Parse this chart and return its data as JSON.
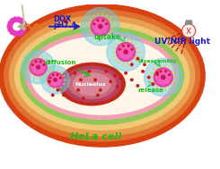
{
  "bg_color": "#ffffff",
  "cell_outer_color": "#d94010",
  "cell_mid1_color": "#e07030",
  "cell_mid2_color": "#e8a050",
  "cell_mid3_color": "#f0c878",
  "cell_green_ring": "#90c855",
  "cell_pink_ring": "#f0a0b0",
  "cytoplasm_color": "#fdf5e8",
  "nucleus_outer": "#c02818",
  "nucleus_mid": "#b84060",
  "nucleus_inner1": "#c86878",
  "nucleus_inner2": "#d88898",
  "drug_color": "#cc1818",
  "arrow_color_blue": "#1818cc",
  "arrow_color_green": "#18aa18",
  "text_uptake": "uptake",
  "text_disassembly": "disassembly",
  "text_diffusion": "diffusion",
  "text_release": "release",
  "text_nucleus": "Nucleolus",
  "text_cell": "HeLa cell",
  "text_dox": "DOX",
  "text_ph": "pH7.4",
  "text_uvnir": "UV/NIR light",
  "green_text_color": "#18bb18",
  "blue_text_color": "#1818cc",
  "spike_color": "#e8c828",
  "polymer_color": "#e07820",
  "shell_color": "#70cce0",
  "nano_core_color": "#e838a8",
  "petal_color": "#f060b8",
  "petal_center": "#cc1060"
}
